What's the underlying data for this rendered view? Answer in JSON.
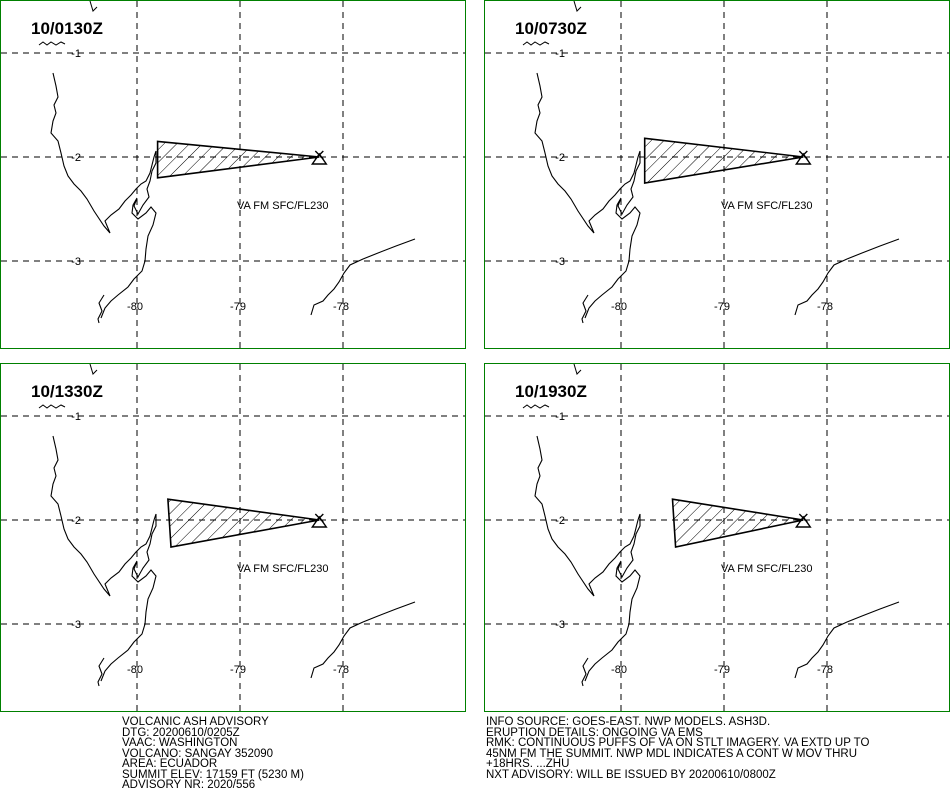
{
  "panels": [
    {
      "time": "10/0130Z",
      "label": "VA FM SFC/FL230",
      "lat_labels": [
        "-1",
        "-2",
        "-3"
      ],
      "lon_labels": [
        "-80",
        "-79",
        "-78"
      ],
      "ash_polygon": [
        [
          -79.8,
          -1.85
        ],
        [
          -78.23,
          -2.0
        ],
        [
          -79.8,
          -2.2
        ]
      ]
    },
    {
      "time": "10/0730Z",
      "label": "VA FM SFC/FL230",
      "lat_labels": [
        "-1",
        "-2",
        "-3"
      ],
      "lon_labels": [
        "-80",
        "-79",
        "-78"
      ],
      "ash_polygon": [
        [
          -79.77,
          -1.82
        ],
        [
          -78.23,
          -2.0
        ],
        [
          -79.77,
          -2.25
        ]
      ]
    },
    {
      "time": "10/1330Z",
      "label": "VA FM SFC/FL230",
      "lat_labels": [
        "-1",
        "-2",
        "-3"
      ],
      "lon_labels": [
        "-80",
        "-79",
        "-78"
      ],
      "ash_polygon": [
        [
          -79.7,
          -1.8
        ],
        [
          -78.23,
          -2.0
        ],
        [
          -79.67,
          -2.26
        ]
      ]
    },
    {
      "time": "10/1930Z",
      "label": "VA FM SFC/FL230",
      "lat_labels": [
        "-1",
        "-2",
        "-3"
      ],
      "lon_labels": [
        "-80",
        "-79",
        "-78"
      ],
      "ash_polygon": [
        [
          -79.5,
          -1.8
        ],
        [
          -78.23,
          -2.0
        ],
        [
          -79.47,
          -2.26
        ]
      ]
    }
  ],
  "advisory_left": [
    "VOLCANIC ASH ADVISORY",
    "DTG: 20200610/0205Z",
    "VAAC: WASHINGTON",
    "VOLCANO: SANGAY 352090",
    "AREA: ECUADOR",
    "SUMMIT ELEV: 17159 FT (5230 M)",
    "ADVISORY NR: 2020/556"
  ],
  "advisory_right": [
    "INFO SOURCE: GOES-EAST. NWP MODELS. ASH3D.",
    "ERUPTION DETAILS: ONGOING VA EMS",
    "RMK: CONTINUOUS PUFFS OF VA ON STLT IMAGERY. VA EXTD UP TO",
    "45NM FM THE SUMMIT. NWP MDL INDICATES A CONT W MOV THRU",
    "+18HRS. ...ZHU",
    "NXT ADVISORY: WILL BE ISSUED BY 20200610/0800Z"
  ],
  "colors": {
    "frame": "#008000",
    "map": "#000000",
    "background": "#ffffff"
  }
}
